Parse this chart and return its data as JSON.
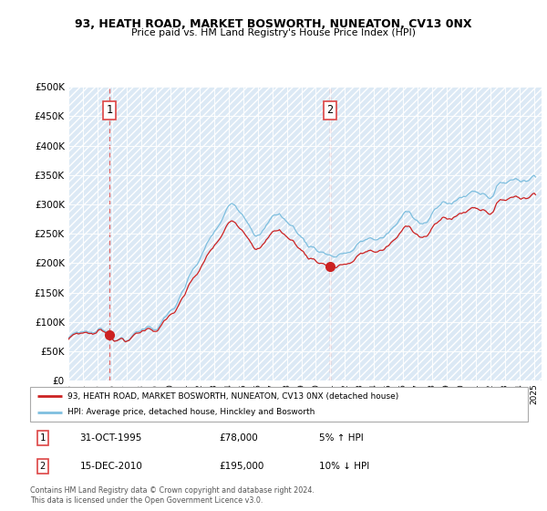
{
  "title": "93, HEATH ROAD, MARKET BOSWORTH, NUNEATON, CV13 0NX",
  "subtitle": "Price paid vs. HM Land Registry's House Price Index (HPI)",
  "legend_line1": "93, HEATH ROAD, MARKET BOSWORTH, NUNEATON, CV13 0NX (detached house)",
  "legend_line2": "HPI: Average price, detached house, Hinckley and Bosworth",
  "footnote": "Contains HM Land Registry data © Crown copyright and database right 2024.\nThis data is licensed under the Open Government Licence v3.0.",
  "annotation1": {
    "num": "1",
    "date": "31-OCT-1995",
    "price": "£78,000",
    "note": "5% ↑ HPI"
  },
  "annotation2": {
    "num": "2",
    "date": "15-DEC-2010",
    "price": "£195,000",
    "note": "10% ↓ HPI"
  },
  "sale1_x": 1995.83,
  "sale1_y": 78000,
  "sale2_x": 2010.96,
  "sale2_y": 195000,
  "hpi_color": "#7fbfdf",
  "price_color": "#cc2222",
  "dashed_color": "#dd4444",
  "background_color": "#dce9f5",
  "ylim": [
    0,
    500000
  ],
  "xlim": [
    1993.0,
    2025.5
  ],
  "yticks": [
    0,
    50000,
    100000,
    150000,
    200000,
    250000,
    300000,
    350000,
    400000,
    450000,
    500000
  ]
}
